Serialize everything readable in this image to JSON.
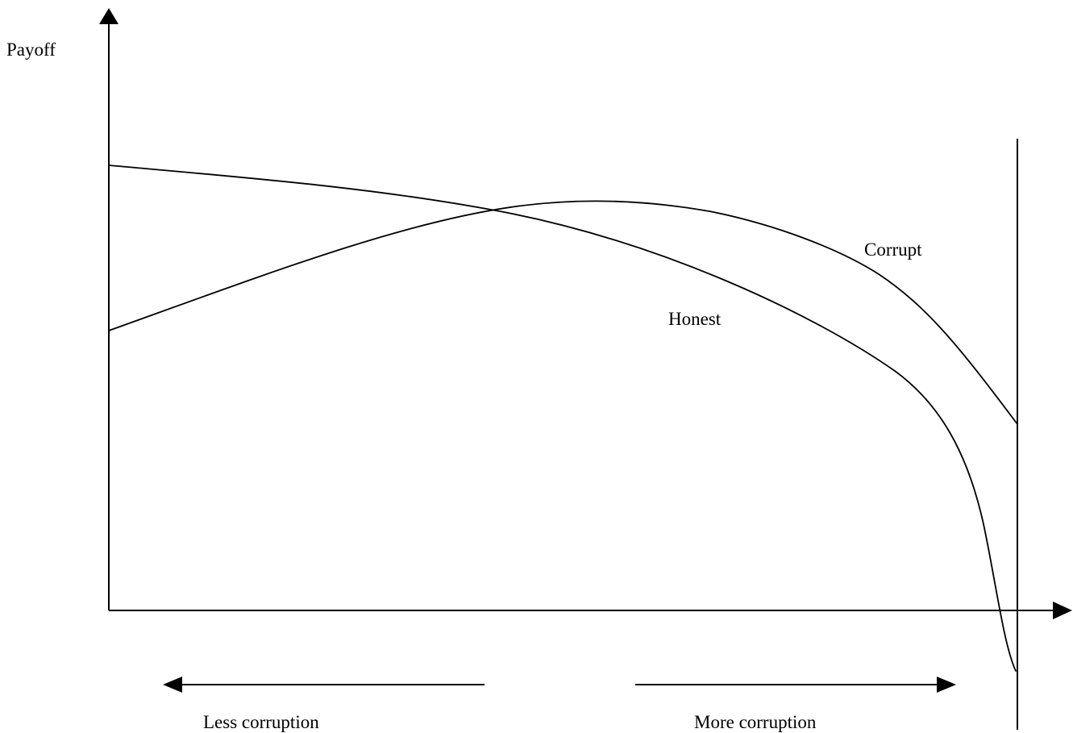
{
  "labels": {
    "y_axis": "Payoff",
    "corrupt": "Corrupt",
    "honest": "Honest",
    "less_corruption": "Less corruption",
    "more_corruption": "More corruption"
  },
  "colors": {
    "stroke": "#000000",
    "background": "#ffffff"
  }
}
